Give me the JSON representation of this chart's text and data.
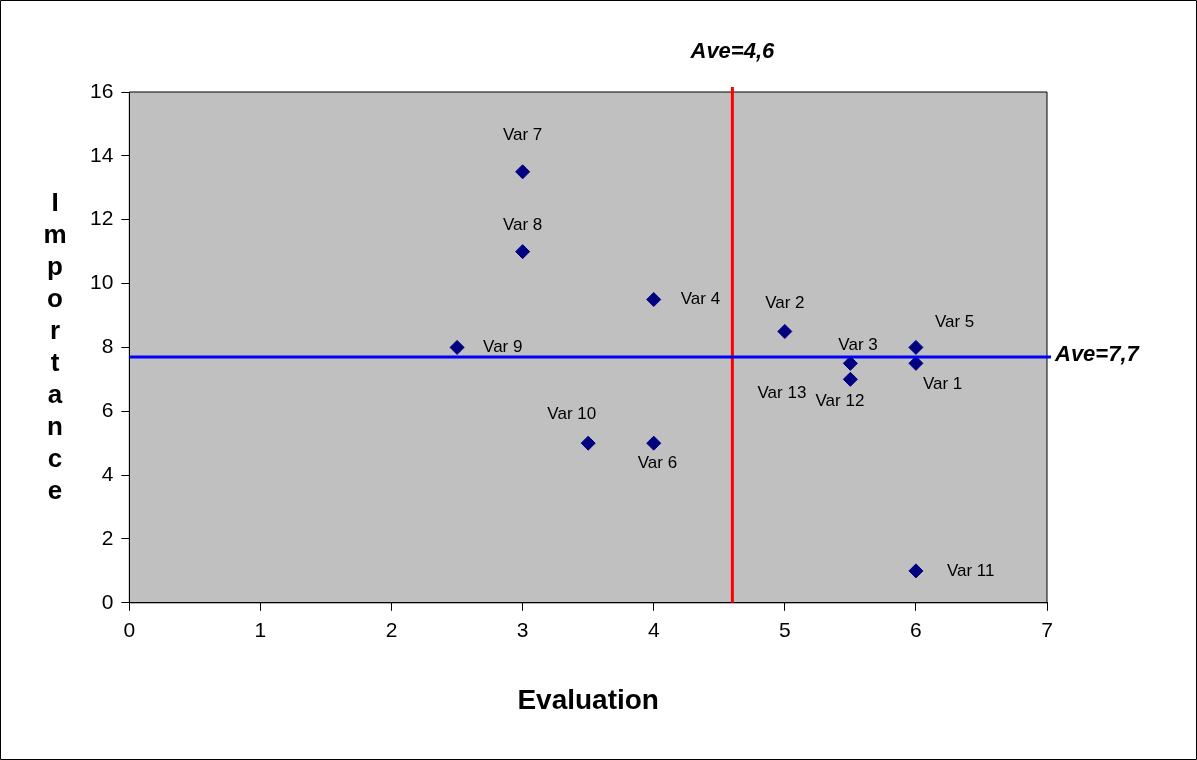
{
  "chart_data": {
    "type": "scatter",
    "xlabel": "Evaluation",
    "ylabel": "Importance",
    "x": [
      6,
      5,
      5.5,
      4,
      6,
      4,
      3,
      3,
      2.5,
      3.5,
      6,
      5.5
    ],
    "series": [
      {
        "color": "#000080",
        "values": [
          7.5,
          8.5,
          7.5,
          9.5,
          8,
          5,
          13.5,
          11,
          8,
          5,
          1,
          7
        ]
      }
    ],
    "marker": "diamond",
    "legend": false,
    "xlim": [
      0,
      7
    ],
    "xticks": [
      0,
      1,
      2,
      3,
      4,
      5,
      6,
      7
    ],
    "ylim": [
      0,
      16
    ],
    "yticks": [
      0,
      2,
      4,
      6,
      8,
      10,
      12,
      14,
      16
    ],
    "ref_lines": [
      {
        "axis": "x",
        "value": 4.6,
        "label": "Ave=4,6",
        "color": "#ff0000"
      },
      {
        "axis": "y",
        "value": 7.7,
        "label": "Ave=7,7",
        "color": "#0000ff"
      }
    ],
    "annotations": [
      {
        "text": "Var 1",
        "x": 6,
        "y": 7.5
      },
      {
        "text": "Var 2",
        "x": 5,
        "y": 8.5
      },
      {
        "text": "Var 3",
        "x": 5.5,
        "y": 7.5
      },
      {
        "text": "Var 4",
        "x": 4,
        "y": 9.5
      },
      {
        "text": "Var 5",
        "x": 6,
        "y": 8
      },
      {
        "text": "Var 6",
        "x": 4,
        "y": 5
      },
      {
        "text": "Var 7",
        "x": 3,
        "y": 13.5
      },
      {
        "text": "Var 8",
        "x": 3,
        "y": 11
      },
      {
        "text": "Var 9",
        "x": 2.5,
        "y": 8
      },
      {
        "text": "Var 10",
        "x": 3.5,
        "y": 5
      },
      {
        "text": "Var 11",
        "x": 6,
        "y": 1
      },
      {
        "text": "Var 12",
        "x": 5.5,
        "y": 7
      },
      {
        "text": "Var 13",
        "x": 5.5,
        "y": 7.5
      }
    ]
  }
}
